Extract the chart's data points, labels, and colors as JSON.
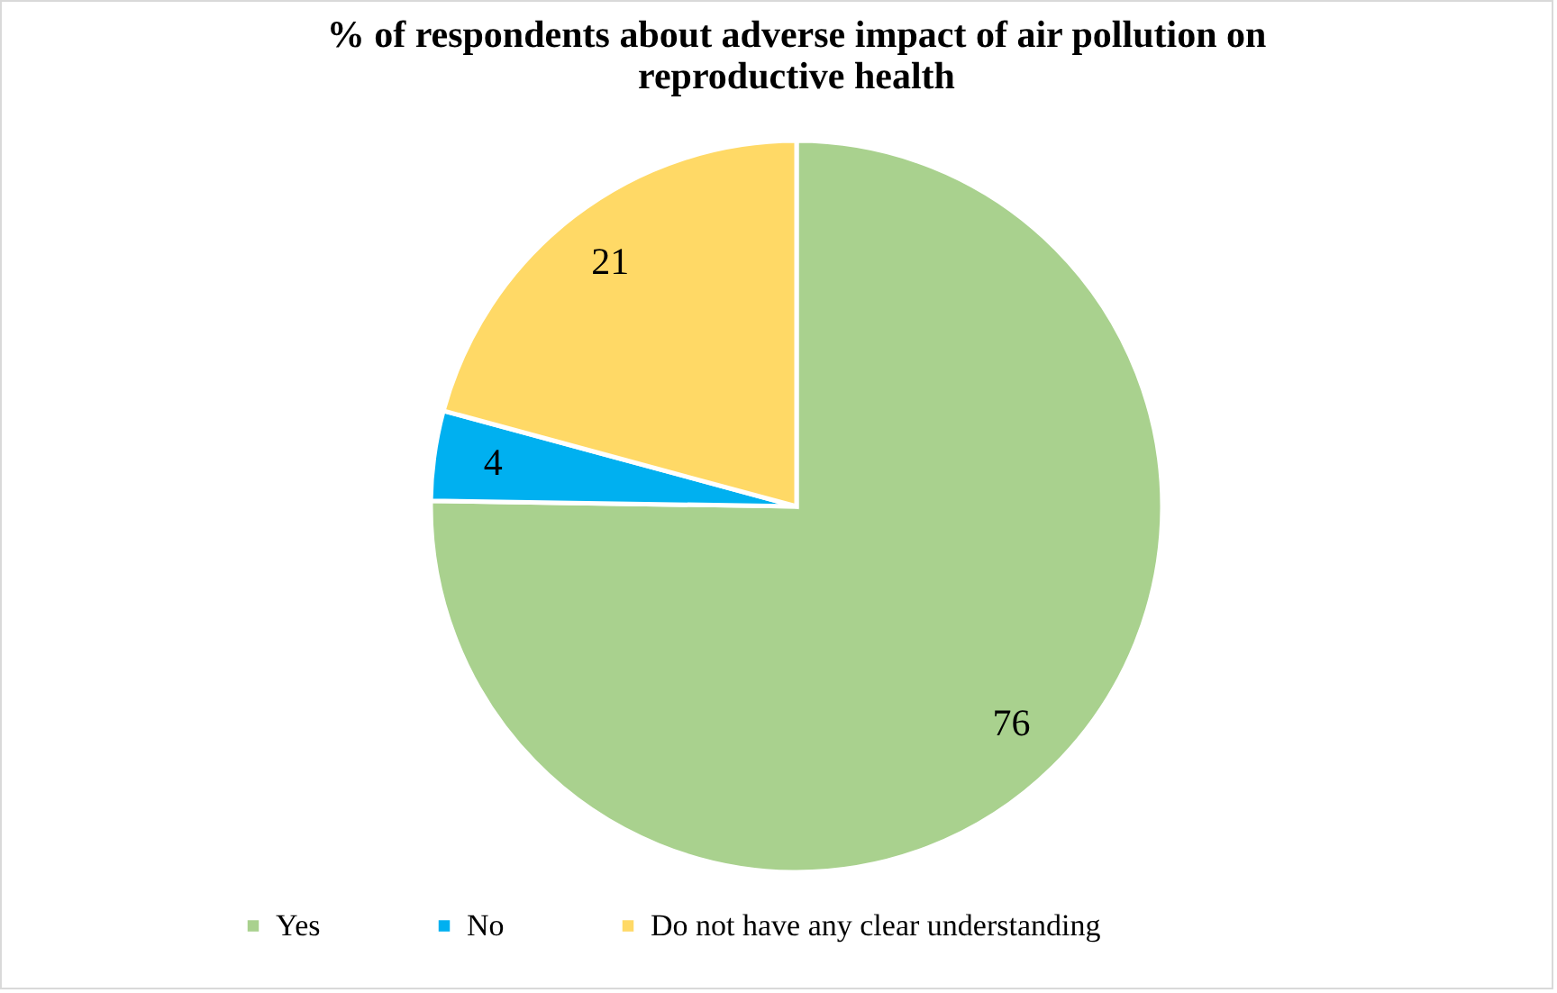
{
  "chart_data": {
    "type": "pie",
    "title": "% of respondents about adverse impact of air pollution on reproductive health",
    "categories": [
      "Yes",
      "No",
      "Do not have any clear understanding"
    ],
    "values": [
      76,
      4,
      21
    ],
    "colors": [
      "#a9d18e",
      "#00b0f0",
      "#ffd966"
    ],
    "data_labels": true,
    "legend": "bottom"
  }
}
